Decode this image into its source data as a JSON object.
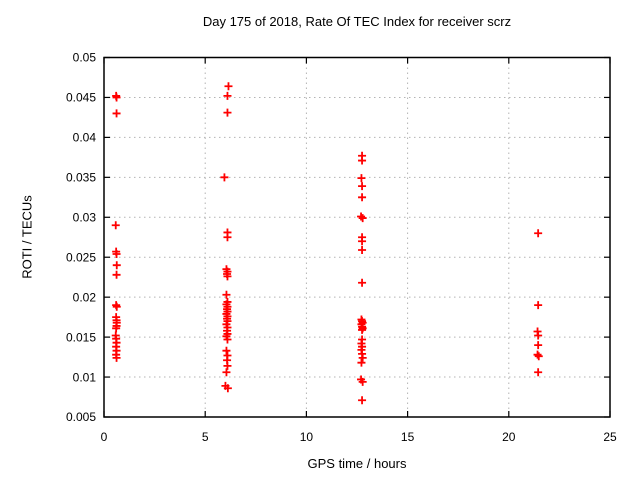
{
  "figure": {
    "background": "#ffffff",
    "text_color": "#000000"
  },
  "chart_data": {
    "type": "scatter",
    "title": "Day 175 of 2018, Rate Of TEC Index for receiver scrz",
    "xlabel": "GPS time / hours",
    "ylabel": "ROTI / TECUs",
    "xlim": [
      0,
      25
    ],
    "ylim": [
      0.005,
      0.05
    ],
    "xticks": [
      0,
      5,
      10,
      15,
      20,
      25
    ],
    "xtick_labels": [
      "0",
      "5",
      "10",
      "15",
      "20",
      "25"
    ],
    "yticks": [
      0.005,
      0.01,
      0.015,
      0.02,
      0.025,
      0.03,
      0.035,
      0.04,
      0.045,
      0.05
    ],
    "ytick_labels": [
      "0.005",
      "0.01",
      "0.015",
      "0.02",
      "0.025",
      "0.03",
      "0.035",
      "0.04",
      "0.045",
      "0.05"
    ],
    "grid": true,
    "legend_position": "none",
    "marker": "plus",
    "marker_color": "#ff0000",
    "grid_color": "#b3b3b3",
    "border_color": "#000000",
    "series": [
      {
        "name": "ROTI",
        "points": [
          [
            0.6,
            0.0452
          ],
          [
            0.62,
            0.045
          ],
          [
            0.62,
            0.043
          ],
          [
            0.58,
            0.029
          ],
          [
            0.6,
            0.0257
          ],
          [
            0.62,
            0.0254
          ],
          [
            0.63,
            0.024
          ],
          [
            0.62,
            0.0228
          ],
          [
            0.6,
            0.019
          ],
          [
            0.63,
            0.0188
          ],
          [
            0.6,
            0.0175
          ],
          [
            0.62,
            0.0171
          ],
          [
            0.63,
            0.0168
          ],
          [
            0.62,
            0.0164
          ],
          [
            0.6,
            0.0161
          ],
          [
            0.58,
            0.0152
          ],
          [
            0.6,
            0.0148
          ],
          [
            0.62,
            0.0143
          ],
          [
            0.6,
            0.0138
          ],
          [
            0.62,
            0.0133
          ],
          [
            0.6,
            0.0128
          ],
          [
            0.62,
            0.0124
          ],
          [
            6.15,
            0.0464
          ],
          [
            6.1,
            0.0452
          ],
          [
            6.1,
            0.0431
          ],
          [
            5.95,
            0.035
          ],
          [
            6.1,
            0.0281
          ],
          [
            6.1,
            0.0275
          ],
          [
            6.05,
            0.0235
          ],
          [
            6.1,
            0.0232
          ],
          [
            6.08,
            0.0229
          ],
          [
            6.1,
            0.0226
          ],
          [
            6.05,
            0.0203
          ],
          [
            6.1,
            0.0194
          ],
          [
            6.05,
            0.0191
          ],
          [
            6.1,
            0.0188
          ],
          [
            6.08,
            0.0185
          ],
          [
            6.1,
            0.0182
          ],
          [
            6.05,
            0.0179
          ],
          [
            6.1,
            0.0176
          ],
          [
            6.08,
            0.0173
          ],
          [
            6.1,
            0.017
          ],
          [
            6.05,
            0.0166
          ],
          [
            6.1,
            0.0162
          ],
          [
            6.08,
            0.0158
          ],
          [
            6.1,
            0.0154
          ],
          [
            6.05,
            0.0151
          ],
          [
            6.1,
            0.0147
          ],
          [
            6.05,
            0.0133
          ],
          [
            6.1,
            0.0127
          ],
          [
            6.08,
            0.0121
          ],
          [
            6.1,
            0.0114
          ],
          [
            6.05,
            0.0106
          ],
          [
            6.0,
            0.0089
          ],
          [
            6.12,
            0.0086
          ],
          [
            12.75,
            0.0377
          ],
          [
            12.75,
            0.0371
          ],
          [
            12.72,
            0.0349
          ],
          [
            12.75,
            0.0339
          ],
          [
            12.75,
            0.0325
          ],
          [
            12.7,
            0.0301
          ],
          [
            12.78,
            0.0299
          ],
          [
            12.75,
            0.0275
          ],
          [
            12.75,
            0.027
          ],
          [
            12.75,
            0.0259
          ],
          [
            12.75,
            0.0218
          ],
          [
            12.72,
            0.0172
          ],
          [
            12.75,
            0.017
          ],
          [
            12.78,
            0.0168
          ],
          [
            12.72,
            0.0166
          ],
          [
            12.75,
            0.0163
          ],
          [
            12.78,
            0.0161
          ],
          [
            12.75,
            0.0159
          ],
          [
            12.75,
            0.0147
          ],
          [
            12.72,
            0.0142
          ],
          [
            12.75,
            0.0138
          ],
          [
            12.72,
            0.0134
          ],
          [
            12.75,
            0.0129
          ],
          [
            12.78,
            0.0124
          ],
          [
            12.72,
            0.0118
          ],
          [
            12.7,
            0.0097
          ],
          [
            12.78,
            0.0094
          ],
          [
            12.75,
            0.0071
          ],
          [
            21.45,
            0.028
          ],
          [
            21.45,
            0.019
          ],
          [
            21.42,
            0.0157
          ],
          [
            21.45,
            0.0152
          ],
          [
            21.45,
            0.014
          ],
          [
            21.42,
            0.0128
          ],
          [
            21.48,
            0.0126
          ],
          [
            21.45,
            0.0106
          ]
        ]
      }
    ]
  }
}
